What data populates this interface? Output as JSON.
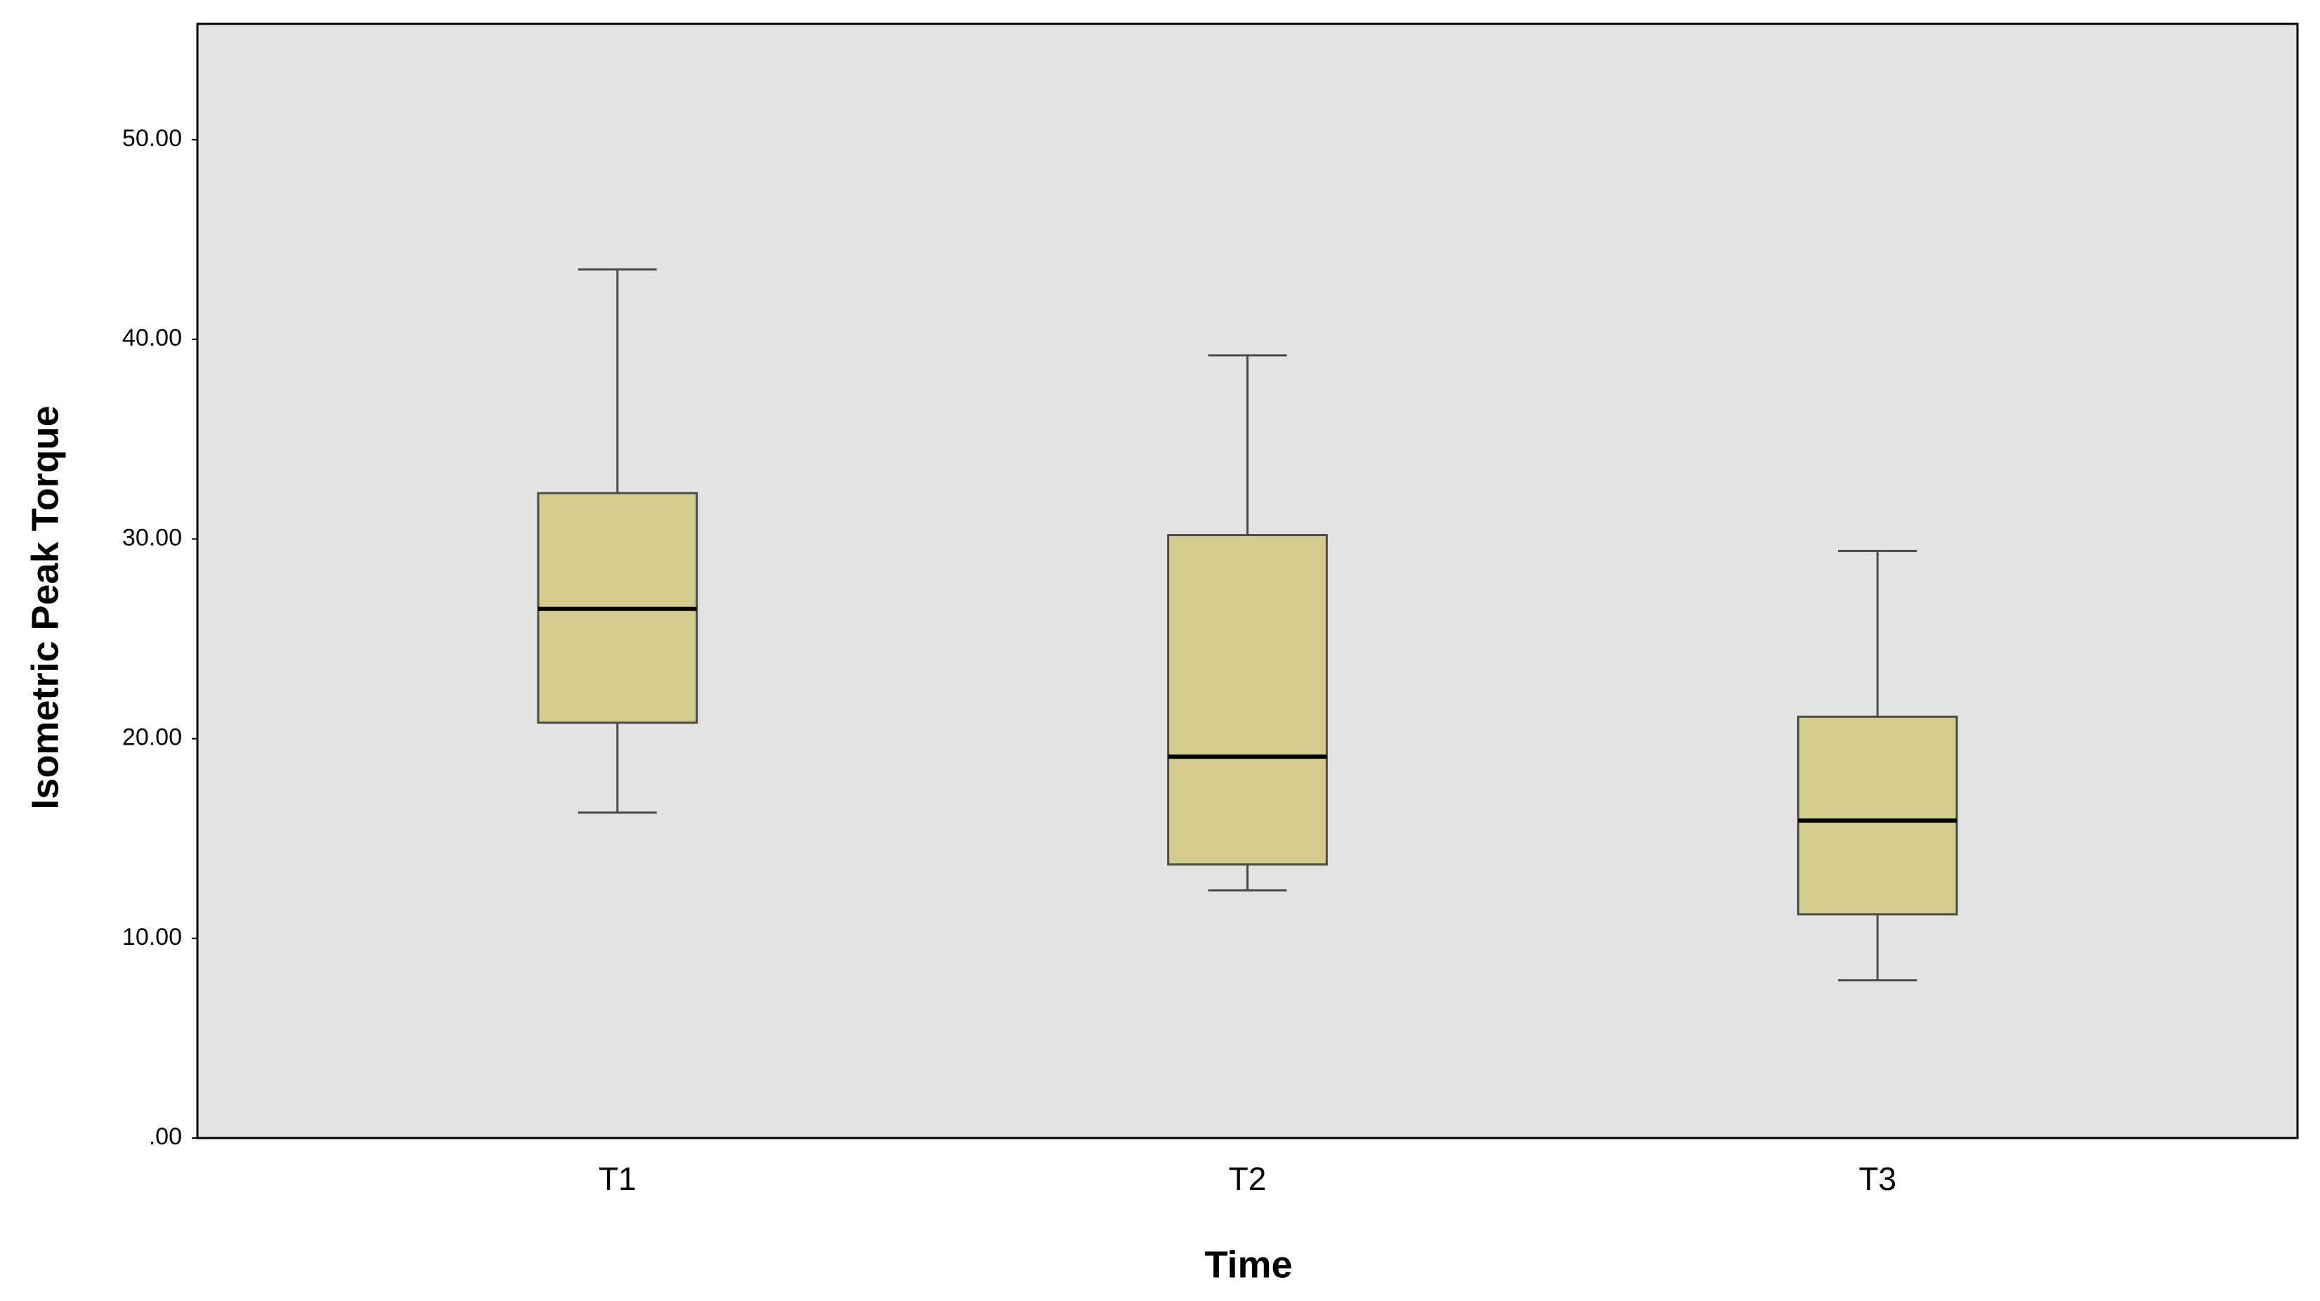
{
  "chart_data": {
    "type": "box",
    "x_label": "Time",
    "y_label": "Isometric Peak Torque",
    "categories": [
      "T1",
      "T2",
      "T3"
    ],
    "boxes": [
      {
        "whisker_low": 16.3,
        "q1": 20.8,
        "median": 26.5,
        "q3": 32.3,
        "whisker_high": 43.5
      },
      {
        "whisker_low": 12.4,
        "q1": 13.7,
        "median": 19.1,
        "q3": 30.2,
        "whisker_high": 39.2
      },
      {
        "whisker_low": 7.9,
        "q1": 11.2,
        "median": 15.9,
        "q3": 21.1,
        "whisker_high": 29.4
      }
    ],
    "color": "#d4cc8e",
    "background": "#e3e3e3",
    "ylim": [
      0,
      55.8
    ],
    "yticks": [
      {
        "value": 0,
        "label": ".00"
      },
      {
        "value": 10,
        "label": "10.00"
      },
      {
        "value": 20,
        "label": "20.00"
      },
      {
        "value": 30,
        "label": "30.00"
      },
      {
        "value": 40,
        "label": "40.00"
      },
      {
        "value": 50,
        "label": "50.00"
      }
    ]
  }
}
